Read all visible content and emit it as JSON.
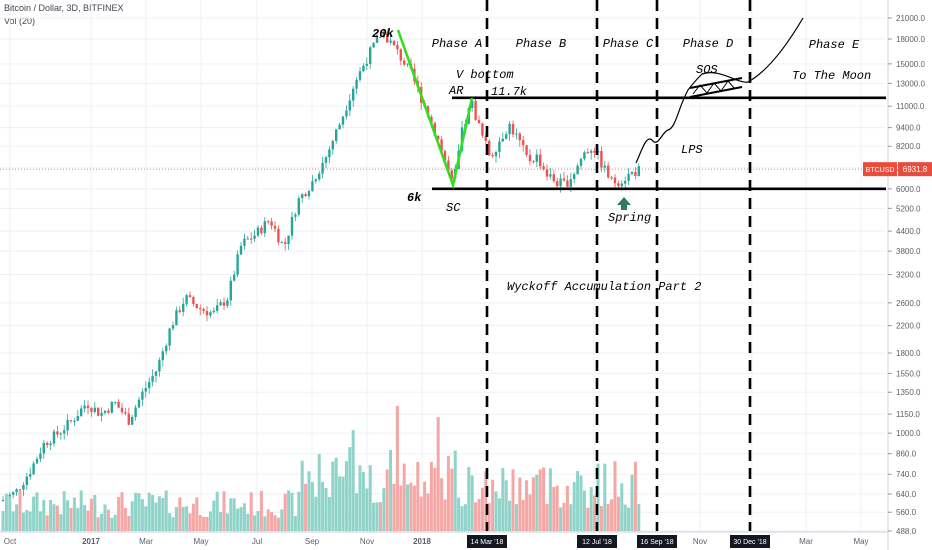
{
  "header": {
    "symbol_line": "Bitcoin / Dollar, 3D, BITFINEX",
    "volume_line": "Vol (20)"
  },
  "colors": {
    "up": "#26a69a",
    "down": "#ef5350",
    "vol_up": "#8fd3c9",
    "vol_down": "#f4a7a5",
    "price_line": "#e06040",
    "sc_ar_line": "#33dd22",
    "annotation": "#000000",
    "spring_arrow": "#2e7d5b"
  },
  "chart_data": {
    "type": "candlestick",
    "title": "Bitcoin / Dollar, 3D, BITFINEX",
    "y_scale": "log",
    "ylim": [
      450,
      21500
    ],
    "y_ticks": [
      "21000.0",
      "18000.0",
      "15000.0",
      "13000.0",
      "11000.0",
      "9400.0",
      "8200.0",
      "7000.0",
      "6000.0",
      "5200.0",
      "4400.0",
      "3800.0",
      "3200.0",
      "2600.0",
      "2200.0",
      "1800.0",
      "1550.0",
      "1350.0",
      "1150.0",
      "1000.0",
      "860.0",
      "740.0",
      "640.0",
      "560.0",
      "488.0"
    ],
    "x_ticks": [
      "Oct",
      "2017",
      "Mar",
      "May",
      "Jul",
      "Sep",
      "Nov",
      "2018",
      "Jul",
      "Nov",
      "Mar",
      "May"
    ],
    "x_markers": [
      "14 Mar '18",
      "12 Jul '18",
      "16 Sep '18",
      "30 Dec '18"
    ],
    "current_price": {
      "label": "BTCUSD",
      "value": "6931.8"
    },
    "series": [
      {
        "name": "Vol (20)",
        "kind": "volume"
      }
    ],
    "annotations": {
      "phases": [
        "Phase A",
        "Phase B",
        "Phase C",
        "Phase D",
        "Phase E"
      ],
      "labels": [
        "20k",
        "V bottom",
        "AR",
        "11.7k",
        "6k",
        "SC",
        "Spring",
        "LPS",
        "SOS",
        "To The Moon",
        "Wyckoff Accumulation Part 2"
      ],
      "levels": [
        11700,
        6000
      ]
    },
    "grid": true
  }
}
